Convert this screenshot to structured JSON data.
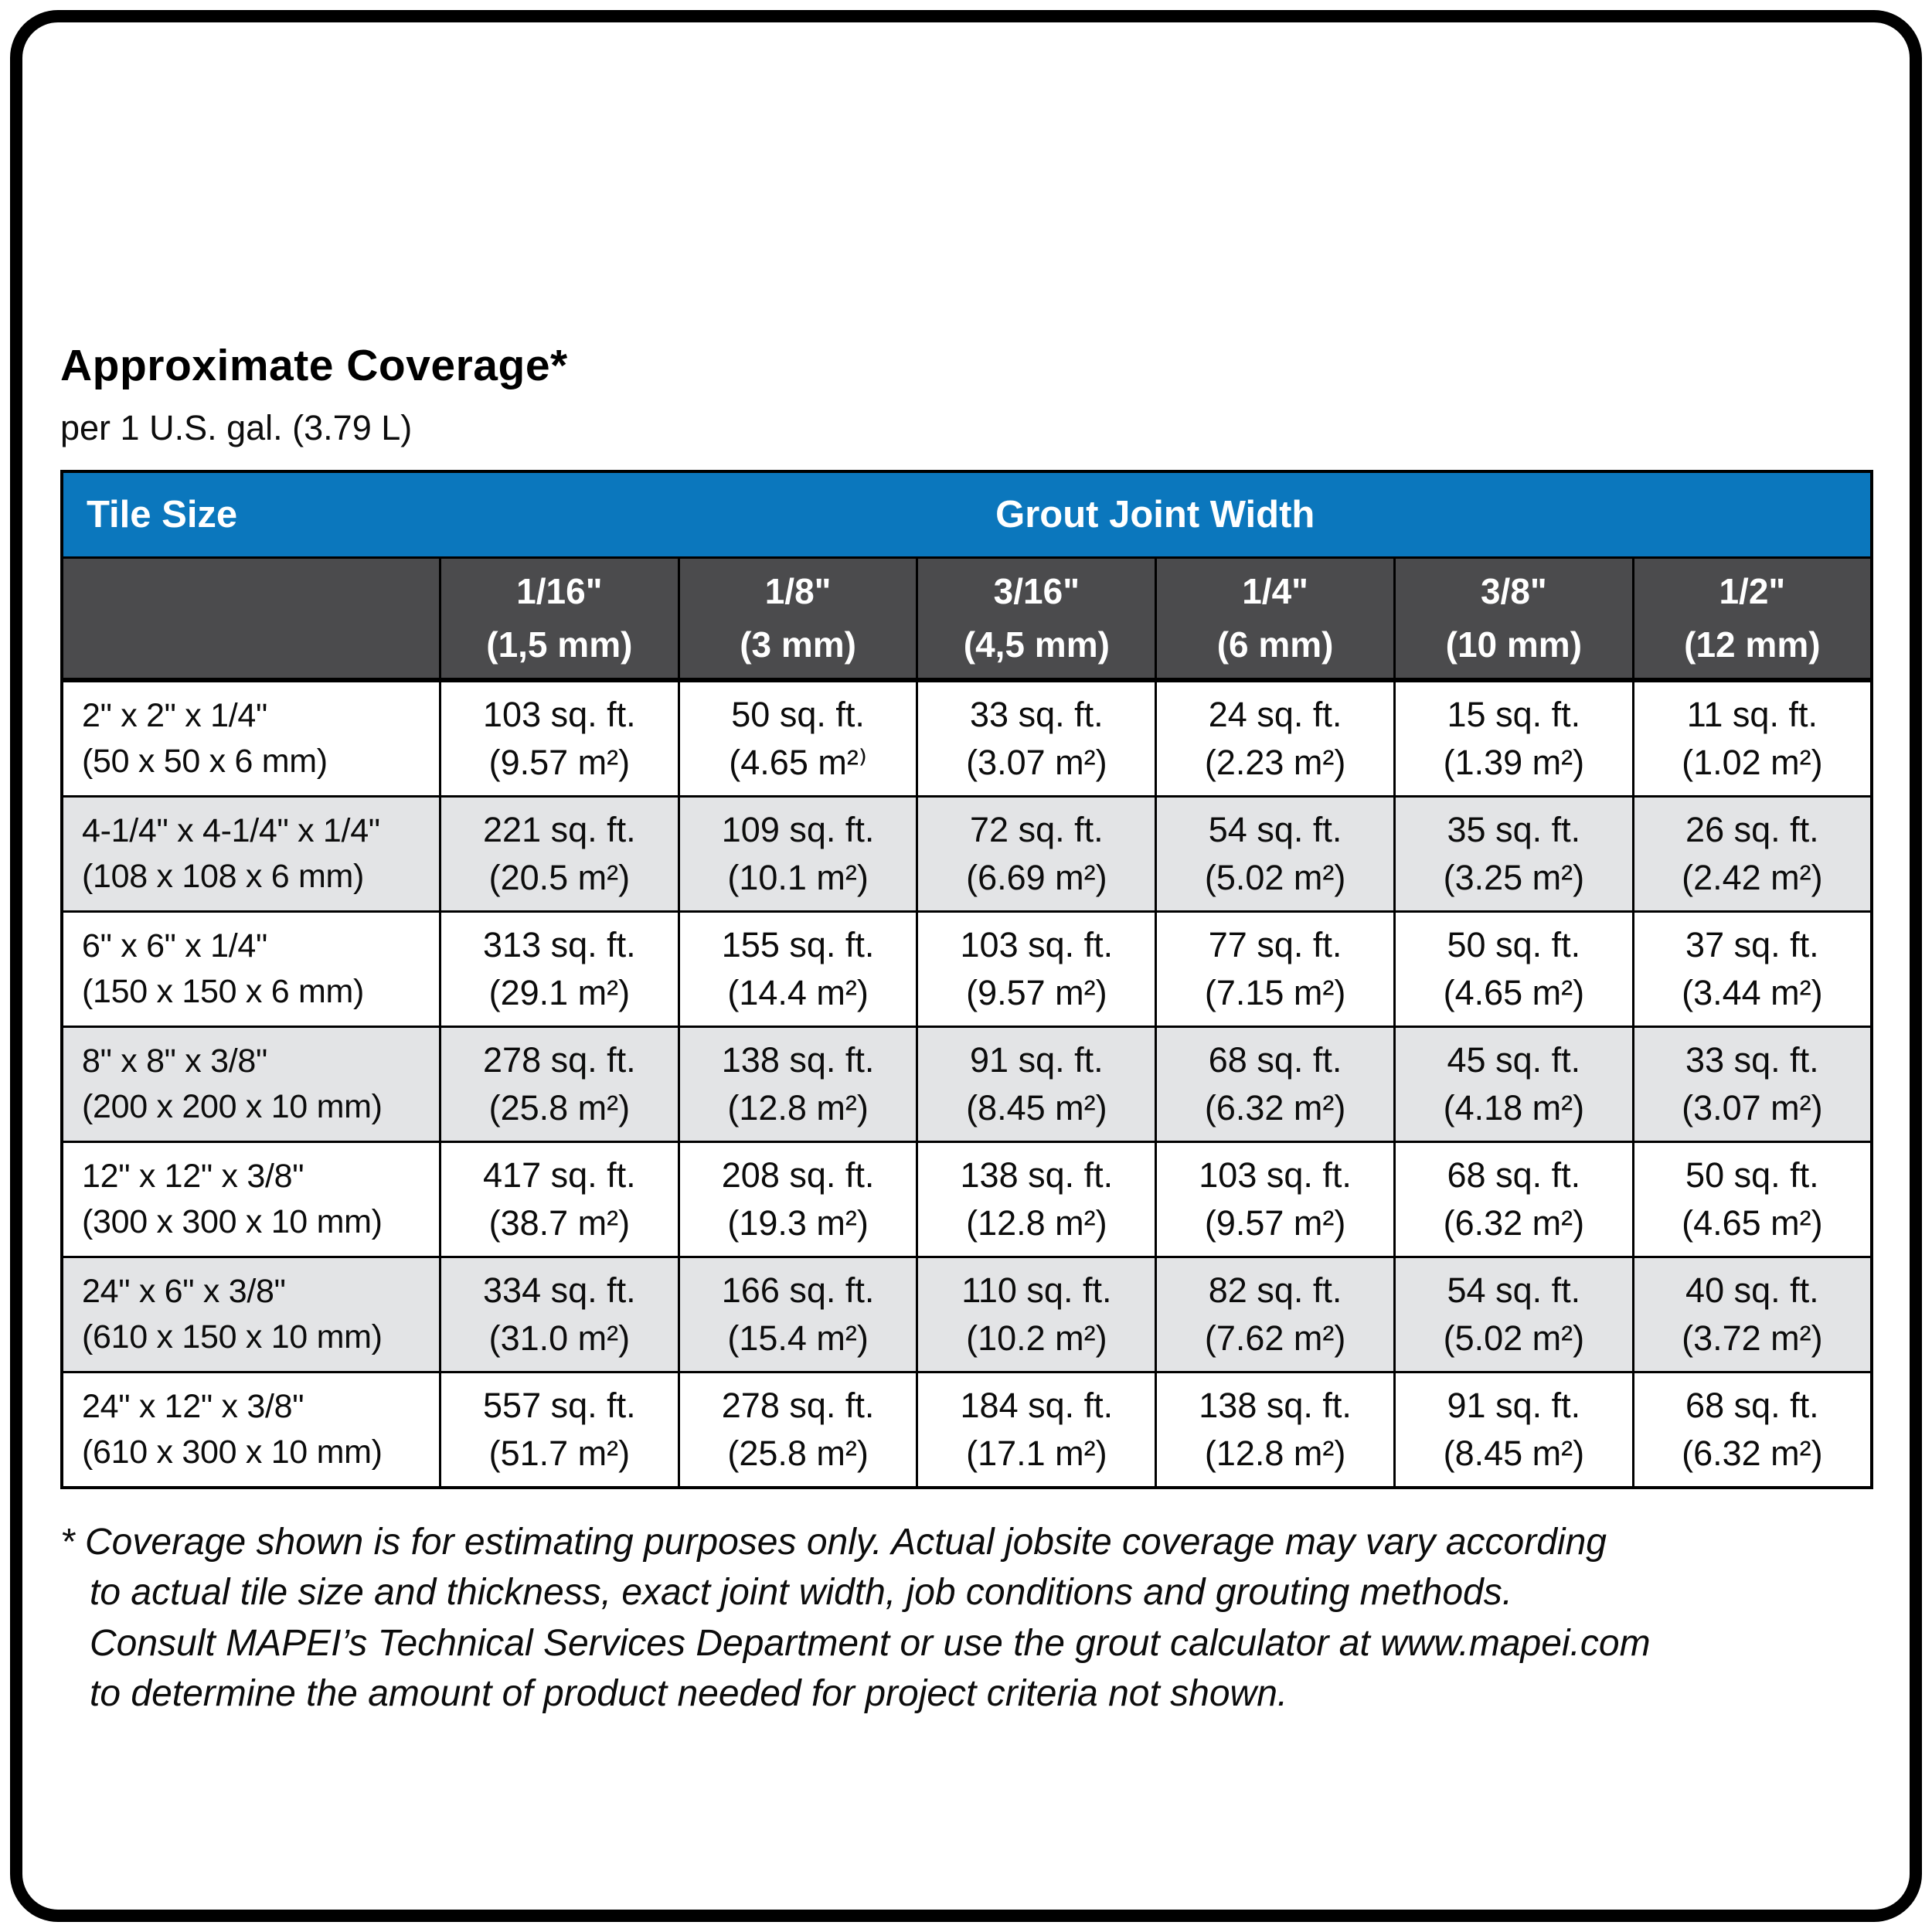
{
  "page": {
    "title": "Approximate Coverage*",
    "subtitle": "per 1 U.S. gal. (3.79 L)"
  },
  "colors": {
    "header_blue": "#0b77bd",
    "subheader_gray": "#4b4b4d",
    "row_stripe_gray": "#e3e4e6",
    "border_black": "#000000"
  },
  "table": {
    "tile_size_header": "Tile Size",
    "grout_header": "Grout Joint Width",
    "joint_columns": [
      {
        "width": "1/16\"",
        "mm": "(1,5 mm)"
      },
      {
        "width": "1/8\"",
        "mm": "(3 mm)"
      },
      {
        "width": "3/16\"",
        "mm": "(4,5 mm)"
      },
      {
        "width": "1/4\"",
        "mm": "(6 mm)"
      },
      {
        "width": "3/8\"",
        "mm": "(10 mm)"
      },
      {
        "width": "1/2\"",
        "mm": "(12 mm)"
      }
    ],
    "rows": [
      {
        "size_in": "2\" x 2\" x 1/4\"",
        "size_mm": "(50 x 50 x 6 mm)",
        "cells": [
          {
            "ft": "103 sq. ft.",
            "m2": "(9.57 m²)"
          },
          {
            "ft": "50 sq. ft.",
            "m2": "(4.65 m²⁾"
          },
          {
            "ft": "33 sq. ft.",
            "m2": "(3.07 m²)"
          },
          {
            "ft": "24 sq. ft.",
            "m2": "(2.23 m²)"
          },
          {
            "ft": "15 sq. ft.",
            "m2": "(1.39 m²)"
          },
          {
            "ft": "11 sq. ft.",
            "m2": "(1.02 m²)"
          }
        ]
      },
      {
        "size_in": "4-1/4\" x 4-1/4\" x 1/4\"",
        "size_mm": "(108 x 108 x 6 mm)",
        "cells": [
          {
            "ft": "221 sq. ft.",
            "m2": "(20.5 m²)"
          },
          {
            "ft": "109 sq. ft.",
            "m2": "(10.1 m²)"
          },
          {
            "ft": "72 sq. ft.",
            "m2": "(6.69 m²)"
          },
          {
            "ft": "54 sq. ft.",
            "m2": "(5.02 m²)"
          },
          {
            "ft": "35 sq. ft.",
            "m2": "(3.25 m²)"
          },
          {
            "ft": "26 sq. ft.",
            "m2": "(2.42 m²)"
          }
        ]
      },
      {
        "size_in": "6\" x 6\" x 1/4\"",
        "size_mm": "(150 x 150 x 6 mm)",
        "cells": [
          {
            "ft": "313 sq. ft.",
            "m2": "(29.1 m²)"
          },
          {
            "ft": "155 sq. ft.",
            "m2": "(14.4 m²)"
          },
          {
            "ft": "103 sq. ft.",
            "m2": "(9.57 m²)"
          },
          {
            "ft": "77 sq. ft.",
            "m2": "(7.15 m²)"
          },
          {
            "ft": "50 sq. ft.",
            "m2": "(4.65 m²)"
          },
          {
            "ft": "37 sq. ft.",
            "m2": "(3.44 m²)"
          }
        ]
      },
      {
        "size_in": "8\" x 8\" x 3/8\"",
        "size_mm": "(200 x 200 x 10 mm)",
        "cells": [
          {
            "ft": "278 sq. ft.",
            "m2": "(25.8 m²)"
          },
          {
            "ft": "138 sq. ft.",
            "m2": "(12.8 m²)"
          },
          {
            "ft": "91 sq. ft.",
            "m2": "(8.45 m²)"
          },
          {
            "ft": "68 sq. ft.",
            "m2": "(6.32 m²)"
          },
          {
            "ft": "45 sq. ft.",
            "m2": "(4.18 m²)"
          },
          {
            "ft": "33 sq. ft.",
            "m2": "(3.07 m²)"
          }
        ]
      },
      {
        "size_in": "12\" x 12\" x 3/8\"",
        "size_mm": "(300 x 300 x 10 mm)",
        "cells": [
          {
            "ft": "417 sq. ft.",
            "m2": "(38.7 m²)"
          },
          {
            "ft": "208 sq. ft.",
            "m2": "(19.3 m²)"
          },
          {
            "ft": "138 sq. ft.",
            "m2": "(12.8 m²)"
          },
          {
            "ft": "103 sq. ft.",
            "m2": "(9.57 m²)"
          },
          {
            "ft": "68 sq. ft.",
            "m2": "(6.32 m²)"
          },
          {
            "ft": "50 sq. ft.",
            "m2": "(4.65 m²)"
          }
        ]
      },
      {
        "size_in": "24\" x 6\" x 3/8\"",
        "size_mm": "(610 x 150 x 10 mm)",
        "cells": [
          {
            "ft": "334 sq. ft.",
            "m2": "(31.0 m²)"
          },
          {
            "ft": "166 sq. ft.",
            "m2": "(15.4 m²)"
          },
          {
            "ft": "110 sq. ft.",
            "m2": "(10.2 m²)"
          },
          {
            "ft": "82 sq. ft.",
            "m2": "(7.62 m²)"
          },
          {
            "ft": "54 sq. ft.",
            "m2": "(5.02 m²)"
          },
          {
            "ft": "40 sq. ft.",
            "m2": "(3.72 m²)"
          }
        ]
      },
      {
        "size_in": "24\" x 12\" x 3/8\"",
        "size_mm": "(610 x 300 x 10 mm)",
        "cells": [
          {
            "ft": "557 sq. ft.",
            "m2": "(51.7 m²)"
          },
          {
            "ft": "278 sq. ft.",
            "m2": "(25.8 m²)"
          },
          {
            "ft": "184 sq. ft.",
            "m2": "(17.1 m²)"
          },
          {
            "ft": "138 sq. ft.",
            "m2": "(12.8 m²)"
          },
          {
            "ft": "91 sq. ft.",
            "m2": "(8.45 m²)"
          },
          {
            "ft": "68 sq. ft.",
            "m2": "(6.32 m²)"
          }
        ]
      }
    ]
  },
  "footnote": {
    "lines": [
      "* Coverage shown is for estimating purposes only. Actual jobsite coverage may vary according",
      "to actual tile size and thickness, exact joint width, job conditions and grouting methods.",
      "Consult MAPEI’s Technical Services Department or use the grout calculator at www.mapei.com",
      "to determine the amount of product needed for project criteria not shown."
    ]
  }
}
